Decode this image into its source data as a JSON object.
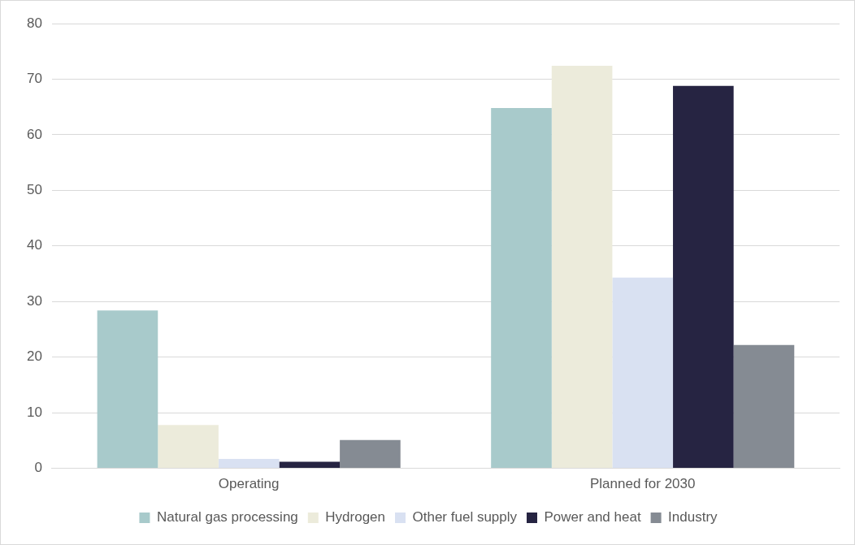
{
  "chart_data": {
    "type": "bar",
    "categories": [
      "Operating",
      "Planned for 2030"
    ],
    "series": [
      {
        "name": "Natural gas processing",
        "color": "#a8cacb",
        "values": [
          28.4,
          64.8
        ]
      },
      {
        "name": "Hydrogen",
        "color": "#ecebdb",
        "values": [
          7.8,
          72.4
        ]
      },
      {
        "name": "Other fuel supply",
        "color": "#d9e1f2",
        "values": [
          1.7,
          34.3
        ]
      },
      {
        "name": "Power and heat",
        "color": "#262442",
        "values": [
          1.2,
          68.8
        ]
      },
      {
        "name": "Industry",
        "color": "#858b93",
        "values": [
          5.1,
          22.2
        ]
      }
    ],
    "ylim": [
      0,
      80
    ],
    "yticks": [
      0,
      10,
      20,
      30,
      40,
      50,
      60,
      70,
      80
    ],
    "grid": "y",
    "legend": "bottom"
  }
}
